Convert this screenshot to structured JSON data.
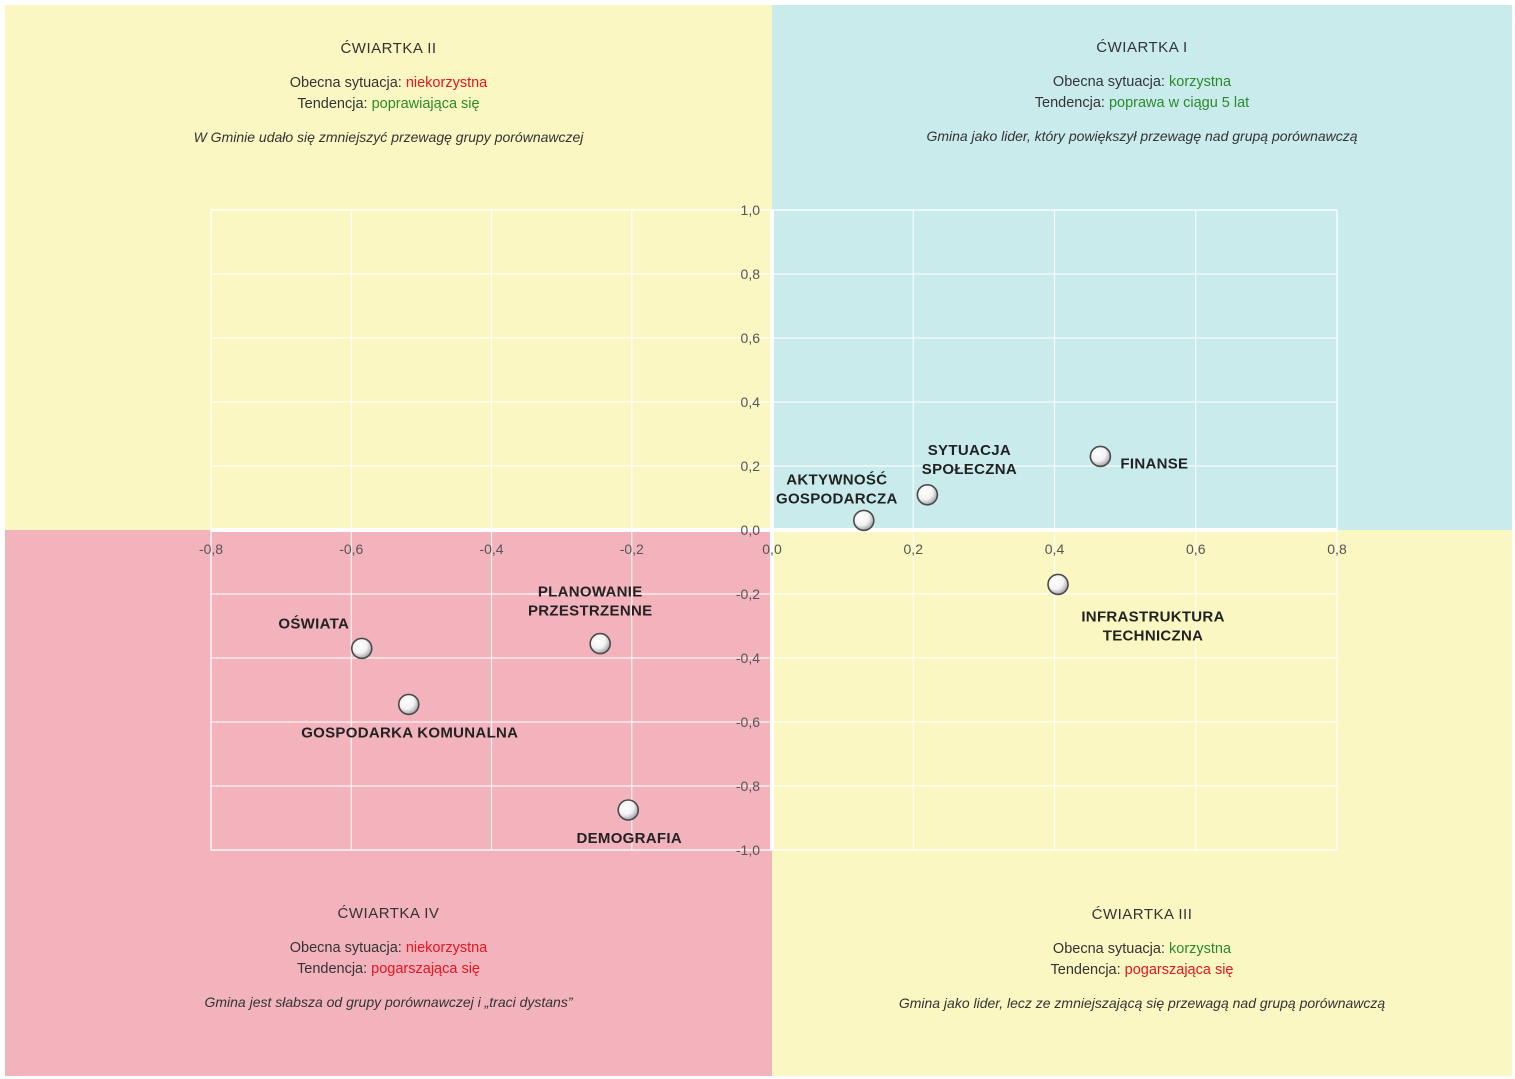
{
  "colors": {
    "quadrant_1": "#c9ebec",
    "quadrant_2": "#fbf7c2",
    "quadrant_3": "#fbf7c2",
    "quadrant_4": "#f3b3bd",
    "negative_text": "#e8141f",
    "positive_text": "#2a8a2a"
  },
  "quadrants": {
    "q1": {
      "title": "ĆWIARTKA I",
      "situation_label": "Obecna sytuacja: ",
      "situation_value": "korzystna",
      "trend_label": "Tendencja: ",
      "trend_value": "poprawa w ciągu 5 lat",
      "description": "Gmina jako lider, który powiększył przewagę nad grupą porównawczą"
    },
    "q2": {
      "title": "ĆWIARTKA II",
      "situation_label": "Obecna sytuacja: ",
      "situation_value": "niekorzystna",
      "trend_label": "Tendencja: ",
      "trend_value": "poprawiająca się",
      "description": "W Gminie udało się zmniejszyć przewagę grupy porównawczej"
    },
    "q3": {
      "title": "ĆWIARTKA III",
      "situation_label": "Obecna sytuacja: ",
      "situation_value": "korzystna",
      "trend_label": "Tendencja: ",
      "trend_value": "pogarszająca się",
      "description": "Gmina jako lider, lecz ze zmniejszającą się przewagą nad grupą porównawczą"
    },
    "q4": {
      "title": "ĆWIARTKA IV",
      "situation_label": "Obecna sytuacja: ",
      "situation_value": "niekorzystna",
      "trend_label": "Tendencja: ",
      "trend_value": "pogarszająca się",
      "description": "Gmina jest słabsza od grupy porównawczej i „traci dystans”"
    }
  },
  "chart_data": {
    "type": "scatter",
    "title": "",
    "xlabel": "",
    "ylabel": "",
    "xlim": [
      -0.8,
      0.8
    ],
    "ylim": [
      -1.0,
      1.0
    ],
    "x_ticks": [
      {
        "value": -0.8,
        "label": "-0,8"
      },
      {
        "value": -0.6,
        "label": "-0,6"
      },
      {
        "value": -0.4,
        "label": "-0,4"
      },
      {
        "value": -0.2,
        "label": "-0,2"
      },
      {
        "value": 0.0,
        "label": "0,0"
      },
      {
        "value": 0.2,
        "label": "0,2"
      },
      {
        "value": 0.4,
        "label": "0,4"
      },
      {
        "value": 0.6,
        "label": "0,6"
      },
      {
        "value": 0.8,
        "label": "0,8"
      }
    ],
    "y_ticks": [
      {
        "value": 1.0,
        "label": "1,0"
      },
      {
        "value": 0.8,
        "label": "0,8"
      },
      {
        "value": 0.6,
        "label": "0,6"
      },
      {
        "value": 0.4,
        "label": "0,4"
      },
      {
        "value": 0.2,
        "label": "0,2"
      },
      {
        "value": 0.0,
        "label": "0,0"
      },
      {
        "value": -0.2,
        "label": "-0,2"
      },
      {
        "value": -0.4,
        "label": "-0,4"
      },
      {
        "value": -0.6,
        "label": "-0,6"
      },
      {
        "value": -0.8,
        "label": "-0,8"
      },
      {
        "value": -1.0,
        "label": "-1,0"
      }
    ],
    "grid": true,
    "points": [
      {
        "key": "finanse",
        "label": [
          "FINANSE"
        ],
        "x": 0.465,
        "y": 0.23,
        "label_pos": "right"
      },
      {
        "key": "sytuacja-spoleczna",
        "label": [
          "SYTUACJA",
          "SPOŁECZNA"
        ],
        "x": 0.22,
        "y": 0.11,
        "label_pos": "above"
      },
      {
        "key": "aktywnosc-gospodarcza",
        "label": [
          "AKTYWNOŚĆ",
          "GOSPODARCZA"
        ],
        "x": 0.13,
        "y": 0.03,
        "label_pos": "above-left"
      },
      {
        "key": "infrastruktura-techniczna",
        "label": [
          "INFRASTRUKTURA",
          "TECHNICZNA"
        ],
        "x": 0.405,
        "y": -0.17,
        "label_pos": "below-right"
      },
      {
        "key": "oswiata",
        "label": [
          "OŚWIATA"
        ],
        "x": -0.585,
        "y": -0.37,
        "label_pos": "above-left"
      },
      {
        "key": "planowanie-przestrzenne",
        "label": [
          "PLANOWANIE",
          "PRZESTRZENNE"
        ],
        "x": -0.245,
        "y": -0.355,
        "label_pos": "above"
      },
      {
        "key": "gospodarka-komunalna",
        "label": [
          "GOSPODARKA KOMUNALNA"
        ],
        "x": -0.518,
        "y": -0.545,
        "label_pos": "below"
      },
      {
        "key": "demografia",
        "label": [
          "DEMOGRAFIA"
        ],
        "x": -0.205,
        "y": -0.875,
        "label_pos": "below"
      }
    ]
  }
}
